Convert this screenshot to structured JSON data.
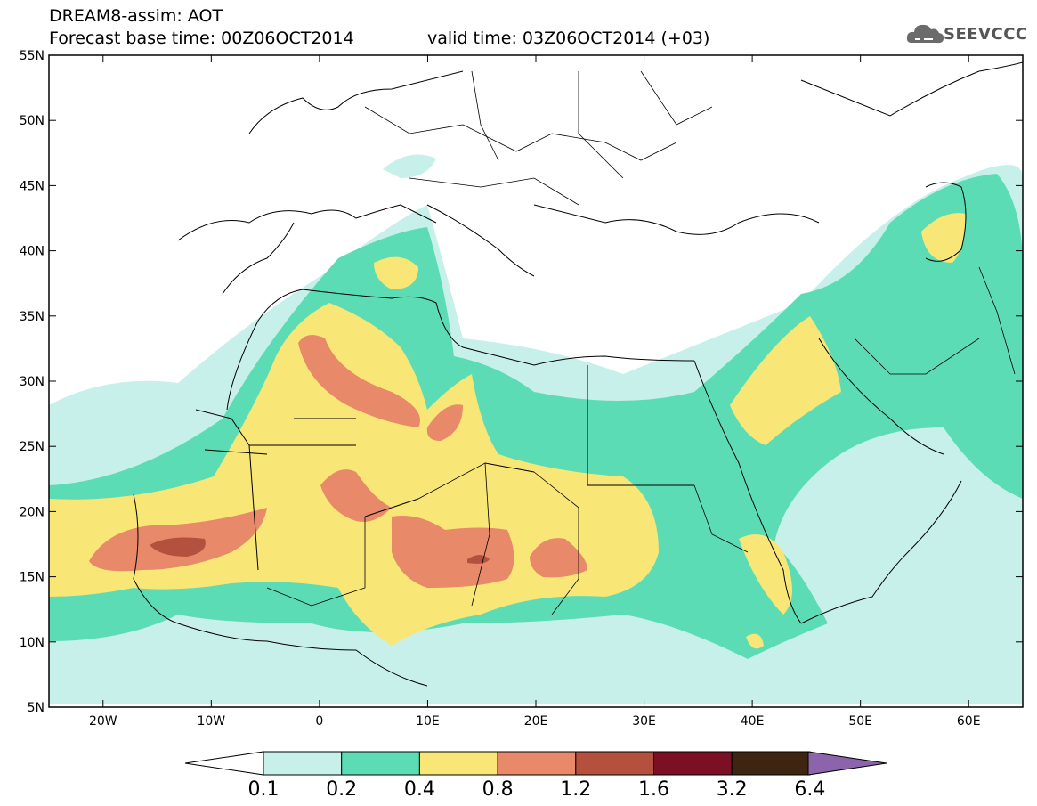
{
  "header": {
    "line1": "DREAM8-assim: AOT",
    "line2_left": "Forecast base time: 00Z06OCT2014",
    "line2_right": "valid time: 03Z06OCT2014 (+03)"
  },
  "logo": {
    "text": "SEEVCCC",
    "icon": "cloud-icon"
  },
  "map": {
    "lat_labels": [
      "55N",
      "50N",
      "45N",
      "40N",
      "35N",
      "30N",
      "25N",
      "20N",
      "15N",
      "10N",
      "5N"
    ],
    "lon_labels": [
      "20W",
      "10W",
      "0",
      "10E",
      "20E",
      "30E",
      "40E",
      "50E",
      "60E"
    ],
    "lon_range": [
      -25,
      65
    ],
    "lat_range": [
      5,
      55
    ]
  },
  "colorbar": {
    "labels": [
      "0.1",
      "0.2",
      "0.4",
      "0.8",
      "1.2",
      "1.6",
      "3.2",
      "6.4"
    ],
    "colors": [
      "#c8f0ea",
      "#5cdcb4",
      "#f8e676",
      "#e8896a",
      "#b4503e",
      "#7d0f24",
      "#3d2512",
      "#8c64ac"
    ]
  }
}
